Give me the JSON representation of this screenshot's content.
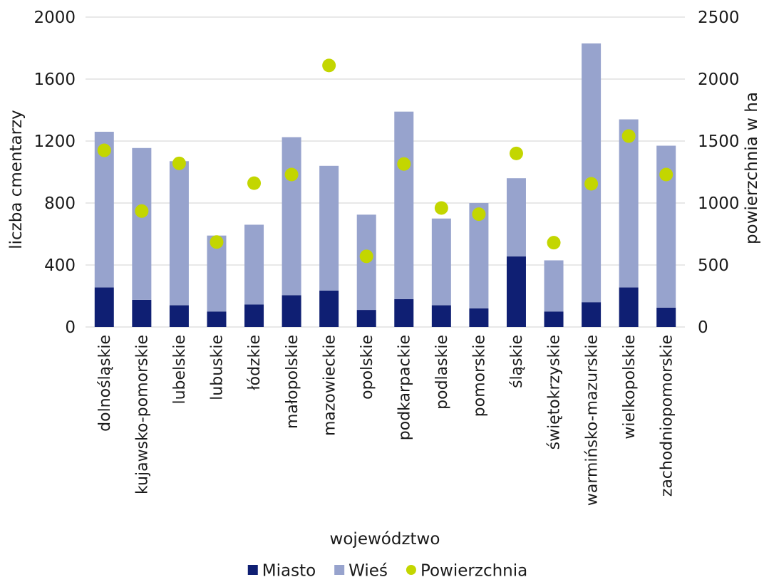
{
  "chart_data": {
    "type": "bar",
    "stacked": true,
    "categories": [
      "dolnośląskie",
      "kujawsko-pomorskie",
      "lubelskie",
      "lubuskie",
      "łódzkie",
      "małopolskie",
      "mazowieckie",
      "opolskie",
      "podkarpackie",
      "podlaskie",
      "pomorskie",
      "śląskie",
      "świętokrzyskie",
      "warmińsko-mazurskie",
      "wielkopolskie",
      "zachodniopomorskie"
    ],
    "series": [
      {
        "name": "Miasto",
        "type": "bar",
        "axis": "left",
        "color": "#0f1f73",
        "values": [
          255,
          175,
          140,
          100,
          145,
          205,
          235,
          110,
          180,
          140,
          120,
          455,
          100,
          160,
          255,
          125
        ]
      },
      {
        "name": "Wieś",
        "type": "bar",
        "axis": "left",
        "color": "#97a3cd",
        "values": [
          1005,
          980,
          930,
          490,
          515,
          1020,
          805,
          615,
          1210,
          560,
          680,
          505,
          330,
          1670,
          1085,
          1045
        ]
      },
      {
        "name": "Powierzchnia",
        "type": "scatter",
        "axis": "right",
        "color": "#c3d600",
        "values": [
          1425,
          935,
          1320,
          685,
          1160,
          1230,
          2110,
          570,
          1315,
          960,
          910,
          1400,
          680,
          1155,
          1540,
          1230
        ]
      }
    ],
    "xlabel": "województwo",
    "ylabel": "liczba cmentarzy",
    "y2label": "powierzchnia w ha",
    "ylim": [
      0,
      2000
    ],
    "y2lim": [
      0,
      2500
    ],
    "yticks": [
      0,
      400,
      800,
      1200,
      1600,
      2000
    ],
    "y2ticks": [
      0,
      500,
      1000,
      1500,
      2000,
      2500
    ],
    "grid": true,
    "legend": "bottom"
  }
}
